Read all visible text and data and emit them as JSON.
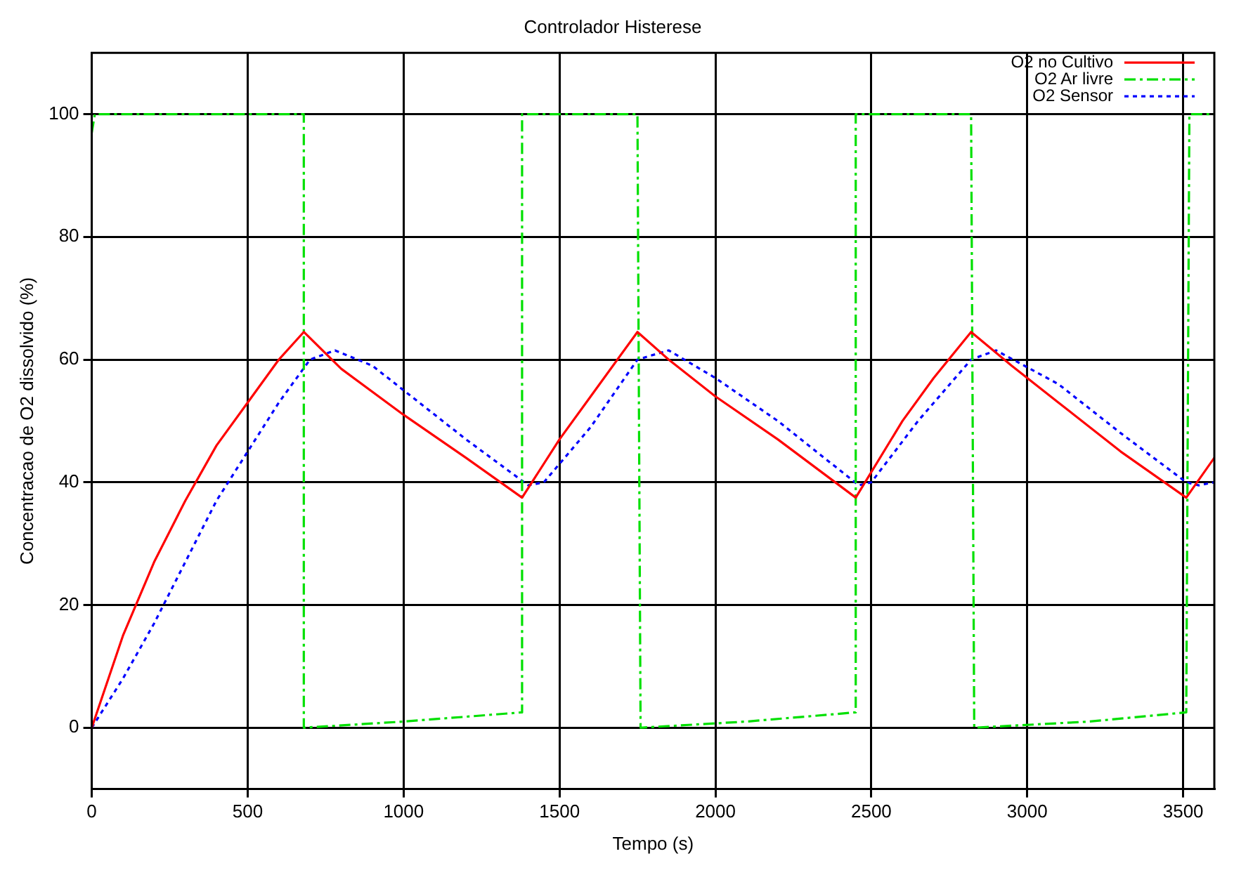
{
  "chart_data": {
    "type": "line",
    "title": "Controlador Histerese",
    "xlabel": "Tempo (s)",
    "ylabel": "Concentracao de O2 dissolvido (%)",
    "xlim": [
      0,
      3600
    ],
    "xticks": [
      0,
      500,
      1000,
      1500,
      2000,
      2500,
      3000,
      3500
    ],
    "ylim": [
      -10,
      110
    ],
    "yticks": [
      0,
      20,
      40,
      60,
      80,
      100
    ],
    "grid": true,
    "legend": "top right",
    "marker": "none",
    "series": [
      {
        "name": "O2 no Cultivo",
        "color": "#ff0000",
        "line_style": "solid",
        "x": [
          0,
          100,
          200,
          300,
          400,
          500,
          600,
          680,
          800,
          1000,
          1200,
          1380,
          1500,
          1600,
          1750,
          1850,
          2000,
          2200,
          2450,
          2600,
          2700,
          2820,
          2950,
          3100,
          3300,
          3510,
          3600
        ],
        "values": [
          0,
          15,
          27,
          37,
          46,
          53,
          60,
          64.5,
          58.5,
          51,
          44,
          37.5,
          47,
          54,
          64.5,
          60,
          54,
          47,
          37.5,
          50,
          57,
          64.5,
          59,
          53,
          45,
          37.5,
          44
        ]
      },
      {
        "name": "O2 Ar livre",
        "color": "#00e000",
        "line_style": "dashed",
        "x": [
          0,
          10,
          680,
          680,
          1000,
          1380,
          1380,
          1750,
          1760,
          2100,
          2450,
          2450,
          2820,
          2830,
          3200,
          3510,
          3520,
          3600
        ],
        "values": [
          97,
          100,
          100,
          0,
          1,
          2.5,
          100,
          100,
          0,
          1,
          2.5,
          100,
          100,
          0,
          1,
          2.5,
          100,
          100
        ]
      },
      {
        "name": "O2 Sensor",
        "color": "#0000ff",
        "line_style": "dotted",
        "x": [
          0,
          100,
          200,
          300,
          400,
          500,
          600,
          700,
          780,
          900,
          1000,
          1200,
          1400,
          1450,
          1600,
          1750,
          1850,
          2000,
          2200,
          2460,
          2500,
          2650,
          2820,
          2900,
          3100,
          3300,
          3510,
          3550,
          3600
        ],
        "values": [
          0,
          8,
          17,
          27,
          37,
          45,
          53,
          60,
          61.5,
          59,
          55,
          47,
          39.5,
          40,
          49,
          60,
          61.5,
          57,
          50,
          39.5,
          40,
          50,
          60,
          61.5,
          56,
          48,
          40,
          39.5,
          40
        ]
      }
    ]
  }
}
